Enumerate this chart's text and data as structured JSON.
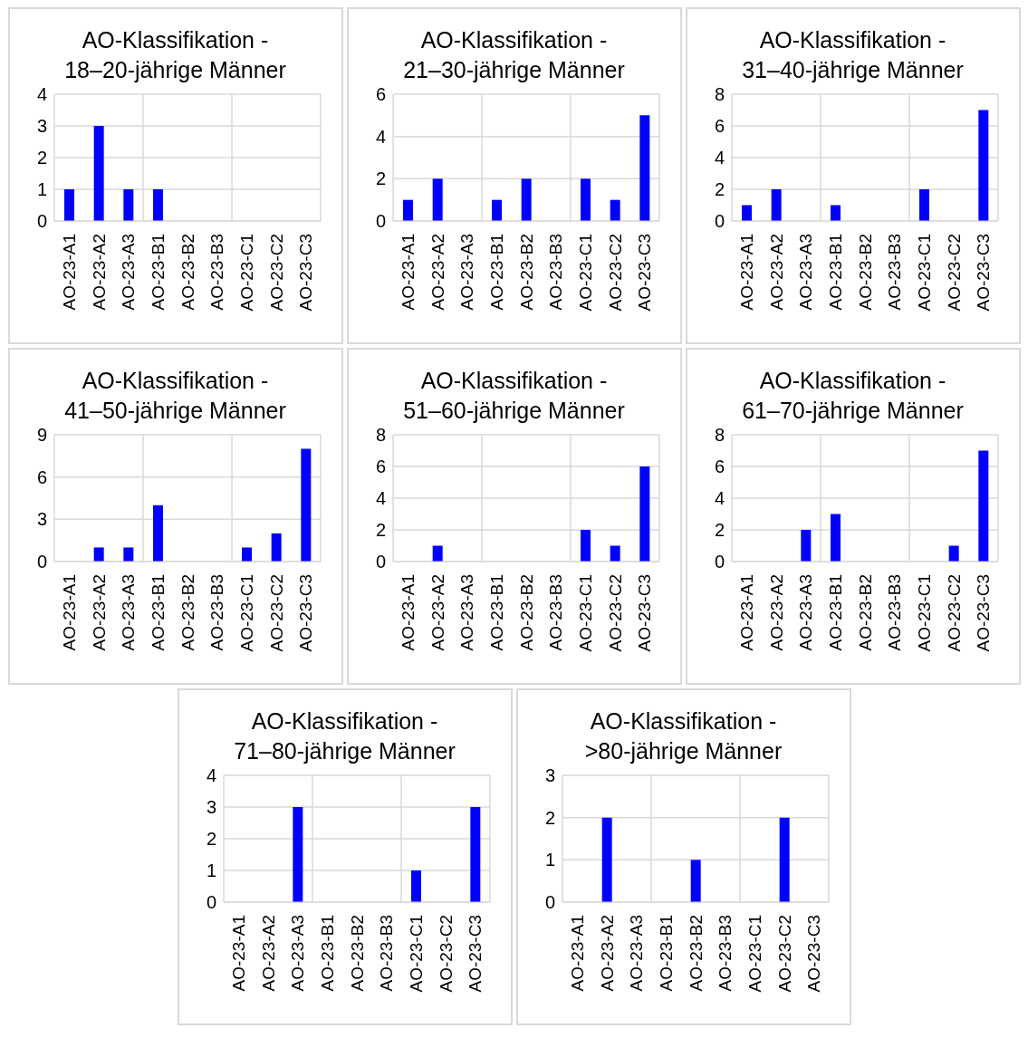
{
  "chart_data": [
    {
      "type": "bar",
      "title": "AO-Klassifikation -\n18–20-jährige Männer",
      "categories": [
        "AO-23-A1",
        "AO-23-A2",
        "AO-23-A3",
        "AO-23-B1",
        "AO-23-B2",
        "AO-23-B3",
        "AO-23-C1",
        "AO-23-C2",
        "AO-23-C3"
      ],
      "values": [
        1,
        3,
        1,
        1,
        0,
        0,
        0,
        0,
        0
      ],
      "color": "#0000ff",
      "ylim": [
        0,
        4
      ],
      "yticks": [
        0,
        1,
        2,
        3,
        4
      ],
      "grid": true
    },
    {
      "type": "bar",
      "title": "AO-Klassifikation -\n21–30-jährige Männer",
      "categories": [
        "AO-23-A1",
        "AO-23-A2",
        "AO-23-A3",
        "AO-23-B1",
        "AO-23-B2",
        "AO-23-B3",
        "AO-23-C1",
        "AO-23-C2",
        "AO-23-C3"
      ],
      "values": [
        1,
        2,
        0,
        1,
        2,
        0,
        2,
        1,
        5
      ],
      "color": "#0000ff",
      "ylim": [
        0,
        6
      ],
      "yticks": [
        0,
        2,
        4,
        6
      ],
      "grid": true
    },
    {
      "type": "bar",
      "title": "AO-Klassifikation -\n31–40-jährige Männer",
      "categories": [
        "AO-23-A1",
        "AO-23-A2",
        "AO-23-A3",
        "AO-23-B1",
        "AO-23-B2",
        "AO-23-B3",
        "AO-23-C1",
        "AO-23-C2",
        "AO-23-C3"
      ],
      "values": [
        1,
        2,
        0,
        1,
        0,
        0,
        2,
        0,
        7
      ],
      "color": "#0000ff",
      "ylim": [
        0,
        8
      ],
      "yticks": [
        0,
        2,
        4,
        6,
        8
      ],
      "grid": true
    },
    {
      "type": "bar",
      "title": "AO-Klassifikation -\n41–50-jährige Männer",
      "categories": [
        "AO-23-A1",
        "AO-23-A2",
        "AO-23-A3",
        "AO-23-B1",
        "AO-23-B2",
        "AO-23-B3",
        "AO-23-C1",
        "AO-23-C2",
        "AO-23-C3"
      ],
      "values": [
        0,
        1,
        1,
        4,
        0,
        0,
        1,
        2,
        8
      ],
      "color": "#0000ff",
      "ylim": [
        0,
        9
      ],
      "yticks": [
        0,
        3,
        6,
        9
      ],
      "grid": true
    },
    {
      "type": "bar",
      "title": "AO-Klassifikation -\n51–60-jährige Männer",
      "categories": [
        "AO-23-A1",
        "AO-23-A2",
        "AO-23-A3",
        "AO-23-B1",
        "AO-23-B2",
        "AO-23-B3",
        "AO-23-C1",
        "AO-23-C2",
        "AO-23-C3"
      ],
      "values": [
        0,
        1,
        0,
        0,
        0,
        0,
        2,
        1,
        6
      ],
      "color": "#0000ff",
      "ylim": [
        0,
        8
      ],
      "yticks": [
        0,
        2,
        4,
        6,
        8
      ],
      "grid": true
    },
    {
      "type": "bar",
      "title": "AO-Klassifikation -\n61–70-jährige Männer",
      "categories": [
        "AO-23-A1",
        "AO-23-A2",
        "AO-23-A3",
        "AO-23-B1",
        "AO-23-B2",
        "AO-23-B3",
        "AO-23-C1",
        "AO-23-C2",
        "AO-23-C3"
      ],
      "values": [
        0,
        0,
        2,
        3,
        0,
        0,
        0,
        1,
        7
      ],
      "color": "#0000ff",
      "ylim": [
        0,
        8
      ],
      "yticks": [
        0,
        2,
        4,
        6,
        8
      ],
      "grid": true
    },
    {
      "type": "bar",
      "title": "AO-Klassifikation -\n71–80-jährige Männer",
      "categories": [
        "AO-23-A1",
        "AO-23-A2",
        "AO-23-A3",
        "AO-23-B1",
        "AO-23-B2",
        "AO-23-B3",
        "AO-23-C1",
        "AO-23-C2",
        "AO-23-C3"
      ],
      "values": [
        0,
        0,
        3,
        0,
        0,
        0,
        1,
        0,
        3
      ],
      "color": "#0000ff",
      "ylim": [
        0,
        4
      ],
      "yticks": [
        0,
        1,
        2,
        3,
        4
      ],
      "grid": true
    },
    {
      "type": "bar",
      "title": "AO-Klassifikation -\n>80-jährige Männer",
      "categories": [
        "AO-23-A1",
        "AO-23-A2",
        "AO-23-A3",
        "AO-23-B1",
        "AO-23-B2",
        "AO-23-B3",
        "AO-23-C1",
        "AO-23-C2",
        "AO-23-C3"
      ],
      "values": [
        0,
        2,
        0,
        0,
        1,
        0,
        0,
        2,
        0
      ],
      "color": "#0000ff",
      "ylim": [
        0,
        3
      ],
      "yticks": [
        0,
        1,
        2,
        3
      ],
      "grid": true
    }
  ]
}
